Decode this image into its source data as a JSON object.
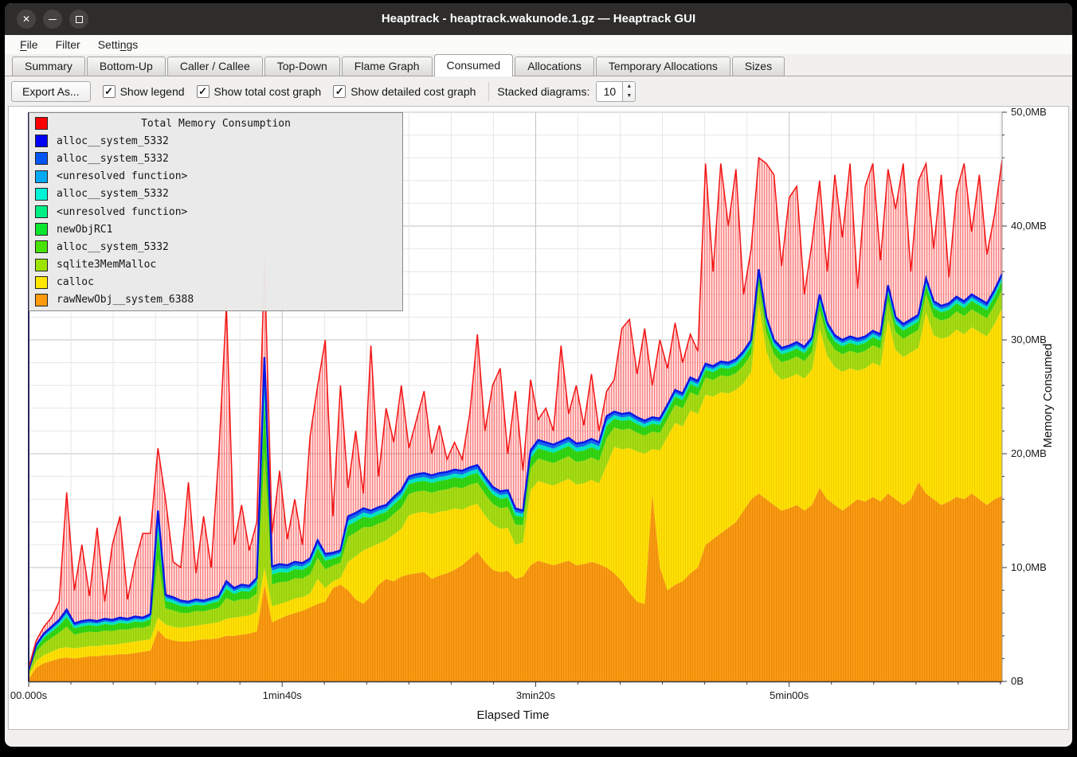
{
  "window": {
    "title": "Heaptrack - heaptrack.wakunode.1.gz — Heaptrack GUI",
    "controls": [
      {
        "name": "close",
        "glyph": "✕"
      },
      {
        "name": "minimize",
        "glyph": "–"
      },
      {
        "name": "maximize",
        "glyph": "▫"
      }
    ]
  },
  "menubar": {
    "items": [
      {
        "pre": "",
        "key": "F",
        "post": "ile"
      },
      {
        "pre": "Filter",
        "key": "",
        "post": ""
      },
      {
        "pre": "Setti",
        "key": "n",
        "post": "gs"
      }
    ]
  },
  "tabs": {
    "items": [
      "Summary",
      "Bottom-Up",
      "Caller / Callee",
      "Top-Down",
      "Flame Graph",
      "Consumed",
      "Allocations",
      "Temporary Allocations",
      "Sizes"
    ],
    "active_index": 5
  },
  "toolbar": {
    "export_label": "Export As...",
    "checkboxes": [
      {
        "label": "Show legend",
        "checked": true
      },
      {
        "label": "Show total cost graph",
        "checked": true
      },
      {
        "label": "Show detailed cost graph",
        "checked": true
      }
    ],
    "check_glyph": "✓",
    "spinner": {
      "label": "Stacked diagrams:",
      "value": "10",
      "up_glyph": "▲",
      "down_glyph": "▼"
    }
  },
  "chart_data": {
    "type": "area",
    "stacked": true,
    "xlabel": "Elapsed Time",
    "ylabel": "Memory Consumed",
    "x_range": [
      0,
      384
    ],
    "y_range": [
      0,
      50
    ],
    "x_ticks": [
      {
        "t": 0,
        "label": "00.000s"
      },
      {
        "t": 100,
        "label": "1min40s"
      },
      {
        "t": 200,
        "label": "3min20s"
      },
      {
        "t": 300,
        "label": "5min00s"
      }
    ],
    "y_ticks": [
      {
        "mb": 0,
        "label": "0B"
      },
      {
        "mb": 10,
        "label": "10,0MB"
      },
      {
        "mb": 20,
        "label": "20,0MB"
      },
      {
        "mb": 30,
        "label": "30,0MB"
      },
      {
        "mb": 40,
        "label": "40,0MB"
      },
      {
        "mb": 50,
        "label": "50,0MB"
      }
    ],
    "grid": {
      "x_minor_step": 16.6667,
      "x_major_step": 100,
      "y_minor_step": 2,
      "y_major_step": 10,
      "minor_color": "#e6e6e6",
      "major_color": "#c2c2c2"
    },
    "axis_colors": {
      "left": "#26265e",
      "bottom": "#3a3a3a",
      "right": "#9a9a9a",
      "tick": "#3a3a3a"
    },
    "legend": [
      {
        "label": "Total Memory Consumption",
        "color": "#fe0000",
        "is_title": true
      },
      {
        "label": "alloc__system_5332",
        "color": "#0000f3"
      },
      {
        "label": "alloc__system_5332",
        "color": "#0055f3"
      },
      {
        "label": "<unresolved function>",
        "color": "#00a9f3"
      },
      {
        "label": "alloc__system_5332",
        "color": "#00f3d7"
      },
      {
        "label": "<unresolved function>",
        "color": "#00ef82"
      },
      {
        "label": "newObjRC1",
        "color": "#0ce62e"
      },
      {
        "label": "alloc__system_5332",
        "color": "#47e200"
      },
      {
        "label": "sqlite3MemMalloc",
        "color": "#9de300"
      },
      {
        "label": "calloc",
        "color": "#ffe600"
      },
      {
        "label": "rawNewObj__system_6388",
        "color": "#ff9b0f"
      }
    ],
    "stack_style": {
      "orange": {
        "label": "rawNewObj__system_6388",
        "color": "#f99d16",
        "stripe": "#ee8a05"
      },
      "yellow": {
        "label": "calloc",
        "color": "#ffe204",
        "stripe": "#f4cf00"
      },
      "bands": [
        {
          "label": "sqlite3MemMalloc",
          "to": 0.55,
          "color": "#a6dd17",
          "stripe": "#97ce09"
        },
        {
          "label": "newObjRC1 / alloc__system_5332 / <unresolved function>",
          "to": 0.8,
          "color": "#35d714",
          "stripe": "#2bc70d"
        },
        {
          "label": "alloc__system_5332 / <unresolved function>",
          "to": 0.9,
          "color": "#00e9c4",
          "stripe": "#00dcb8"
        },
        {
          "label": "alloc__system_5332",
          "to": 1.0,
          "color": "#1766f0",
          "stripe": "#1766f0"
        }
      ],
      "blue_line": "#0b16e3",
      "red_line": "#f41414",
      "red_fill_base": "rgba(255,45,45,0.16)",
      "red_fill_stripe": "rgba(243,30,30,0.5)"
    },
    "x": [
      0,
      3,
      6,
      9,
      12,
      15,
      18,
      21,
      24,
      27,
      30,
      33,
      36,
      39,
      42,
      45,
      48,
      51,
      54,
      57,
      60,
      63,
      66,
      69,
      72,
      75,
      78,
      81,
      84,
      87,
      90,
      93,
      96,
      99,
      102,
      105,
      108,
      111,
      114,
      117,
      120,
      123,
      126,
      129,
      132,
      135,
      138,
      141,
      144,
      147,
      150,
      153,
      156,
      159,
      162,
      165,
      168,
      171,
      174,
      177,
      180,
      183,
      186,
      189,
      192,
      195,
      198,
      201,
      204,
      207,
      210,
      213,
      216,
      219,
      222,
      225,
      228,
      231,
      234,
      237,
      240,
      243,
      246,
      249,
      252,
      255,
      258,
      261,
      264,
      267,
      270,
      273,
      276,
      279,
      282,
      285,
      288,
      291,
      294,
      297,
      300,
      303,
      306,
      309,
      312,
      315,
      318,
      321,
      324,
      327,
      330,
      333,
      336,
      339,
      342,
      345,
      348,
      351,
      354,
      357,
      360,
      363,
      366,
      369,
      372,
      375,
      378,
      381,
      384
    ],
    "orange_top": [
      0.2,
      1.2,
      1.6,
      1.8,
      2.0,
      2.1,
      2.0,
      2.1,
      2.2,
      2.2,
      2.3,
      2.3,
      2.4,
      2.4,
      2.5,
      2.6,
      2.7,
      4.5,
      3.8,
      3.6,
      3.5,
      3.5,
      3.6,
      3.7,
      3.7,
      3.8,
      4.0,
      4.0,
      4.1,
      4.2,
      4.4,
      8.5,
      5.2,
      5.5,
      5.8,
      6.0,
      6.2,
      6.5,
      6.8,
      7.0,
      8.2,
      8.5,
      8.0,
      7.2,
      6.8,
      7.5,
      8.5,
      9.0,
      8.8,
      9.2,
      9.4,
      9.5,
      9.6,
      9.0,
      9.3,
      9.5,
      9.8,
      10.2,
      10.8,
      11.4,
      10.5,
      9.8,
      9.6,
      9.7,
      9.0,
      9.2,
      10.2,
      10.6,
      10.4,
      10.2,
      10.4,
      10.6,
      10.2,
      10.3,
      10.5,
      10.3,
      10.0,
      9.5,
      8.8,
      7.8,
      7.0,
      6.8,
      16.5,
      10.0,
      8.0,
      8.5,
      8.8,
      9.5,
      10.0,
      12.0,
      12.5,
      13.0,
      13.5,
      14.0,
      15.0,
      16.0,
      16.5,
      16.0,
      15.5,
      15.0,
      15.2,
      15.5,
      15.0,
      15.5,
      17.0,
      16.0,
      15.5,
      15.0,
      15.5,
      16.0,
      15.8,
      16.2,
      15.8,
      16.5,
      16.0,
      15.5,
      16.0,
      17.5,
      16.5,
      16.0,
      15.5,
      15.8,
      16.2,
      16.0,
      16.5,
      16.0,
      15.5,
      16.0,
      16.3
    ],
    "yellow_top": [
      0.5,
      1.8,
      2.3,
      2.6,
      2.9,
      3.0,
      2.9,
      3.0,
      3.1,
      3.1,
      3.2,
      3.2,
      3.3,
      3.4,
      3.5,
      3.6,
      3.7,
      5.6,
      5.0,
      4.8,
      4.7,
      4.8,
      4.9,
      5.0,
      5.1,
      5.2,
      5.5,
      5.6,
      5.7,
      5.8,
      6.1,
      10.0,
      6.6,
      6.8,
      7.0,
      7.3,
      7.4,
      7.7,
      9.0,
      8.2,
      8.8,
      9.1,
      10.5,
      11.0,
      11.5,
      11.8,
      12.1,
      12.4,
      12.9,
      13.4,
      14.6,
      14.8,
      14.9,
      14.7,
      14.9,
      15.0,
      15.2,
      15.1,
      15.4,
      15.6,
      14.6,
      13.8,
      13.4,
      13.5,
      12.0,
      12.2,
      16.8,
      17.6,
      17.4,
      17.2,
      17.5,
      17.8,
      17.3,
      17.4,
      17.7,
      17.4,
      19.0,
      20.6,
      20.4,
      20.5,
      20.2,
      20.0,
      20.4,
      20.3,
      21.5,
      22.7,
      22.4,
      23.8,
      23.5,
      25.2,
      25.0,
      25.4,
      25.3,
      25.6,
      26.2,
      27.2,
      33.2,
      29.0,
      27.2,
      26.5,
      26.7,
      27.0,
      26.6,
      27.4,
      31.0,
      28.6,
      27.6,
      27.2,
      27.5,
      27.3,
      27.5,
      28.0,
      27.7,
      31.8,
      29.1,
      28.5,
      28.9,
      29.3,
      32.4,
      30.4,
      30.1,
      30.3,
      30.9,
      30.5,
      31.1,
      30.7,
      30.3,
      31.4,
      32.8
    ],
    "blue_top": [
      1.0,
      3.2,
      4.2,
      4.8,
      5.4,
      6.3,
      5.1,
      5.3,
      5.4,
      5.3,
      5.5,
      5.4,
      5.6,
      5.5,
      5.7,
      5.6,
      5.9,
      15.0,
      7.6,
      7.4,
      7.1,
      7.0,
      7.2,
      7.1,
      7.3,
      7.5,
      8.8,
      8.2,
      8.5,
      8.4,
      9.1,
      28.5,
      10.1,
      10.3,
      10.2,
      10.5,
      10.4,
      10.8,
      12.4,
      11.2,
      11.3,
      11.5,
      14.5,
      14.8,
      15.2,
      15.0,
      15.3,
      15.5,
      16.2,
      16.8,
      18.0,
      18.2,
      18.3,
      18.1,
      18.3,
      18.4,
      18.6,
      18.5,
      18.8,
      19.0,
      18.0,
      17.1,
      16.7,
      16.8,
      15.2,
      15.0,
      20.3,
      21.2,
      21.0,
      20.8,
      21.1,
      21.4,
      20.9,
      21.0,
      21.3,
      21.0,
      23.3,
      23.7,
      23.5,
      23.6,
      23.2,
      22.9,
      23.2,
      23.1,
      24.3,
      25.6,
      25.3,
      26.7,
      26.4,
      27.9,
      27.7,
      28.1,
      28.0,
      28.3,
      29.0,
      30.0,
      36.2,
      32.0,
      30.0,
      29.3,
      29.5,
      29.8,
      29.4,
      30.2,
      34.0,
      31.5,
      30.4,
      30.0,
      30.3,
      30.1,
      30.3,
      30.8,
      30.5,
      34.8,
      32.0,
      31.4,
      31.8,
      32.2,
      35.4,
      33.4,
      33.0,
      33.2,
      33.8,
      33.4,
      34.0,
      33.6,
      33.2,
      34.4,
      35.8
    ],
    "total": [
      1.2,
      3.6,
      4.8,
      5.6,
      7.0,
      16.6,
      8.0,
      12.0,
      7.5,
      13.5,
      7.0,
      12.0,
      14.5,
      7.2,
      10.5,
      13.0,
      13.0,
      20.5,
      16.0,
      10.5,
      10.0,
      17.5,
      9.5,
      14.5,
      10.0,
      20.0,
      33.0,
      12.0,
      15.5,
      11.5,
      14.0,
      37.0,
      13.0,
      18.5,
      12.5,
      16.0,
      12.0,
      21.5,
      26.0,
      30.0,
      14.5,
      26.0,
      17.0,
      22.0,
      16.5,
      29.5,
      18.0,
      24.0,
      21.0,
      26.0,
      20.5,
      23.0,
      25.5,
      20.0,
      22.5,
      19.5,
      21.0,
      19.5,
      23.5,
      30.5,
      22.0,
      26.0,
      27.5,
      20.0,
      25.5,
      18.5,
      26.5,
      23.0,
      24.0,
      22.0,
      29.5,
      23.5,
      26.0,
      22.5,
      27.0,
      22.0,
      25.5,
      26.5,
      31.0,
      31.8,
      27.0,
      31.0,
      26.0,
      30.0,
      27.5,
      31.5,
      28.0,
      30.5,
      29.0,
      45.5,
      36.0,
      45.5,
      40.0,
      45.0,
      34.0,
      38.0,
      46.0,
      45.5,
      44.5,
      36.5,
      42.5,
      43.5,
      34.0,
      38.5,
      44.0,
      36.0,
      44.5,
      39.0,
      45.5,
      34.5,
      43.5,
      45.5,
      37.0,
      45.0,
      41.5,
      45.5,
      36.0,
      44.0,
      45.5,
      38.0,
      44.5,
      35.5,
      43.0,
      45.5,
      39.5,
      44.5,
      37.5,
      41.0,
      45.8
    ]
  }
}
